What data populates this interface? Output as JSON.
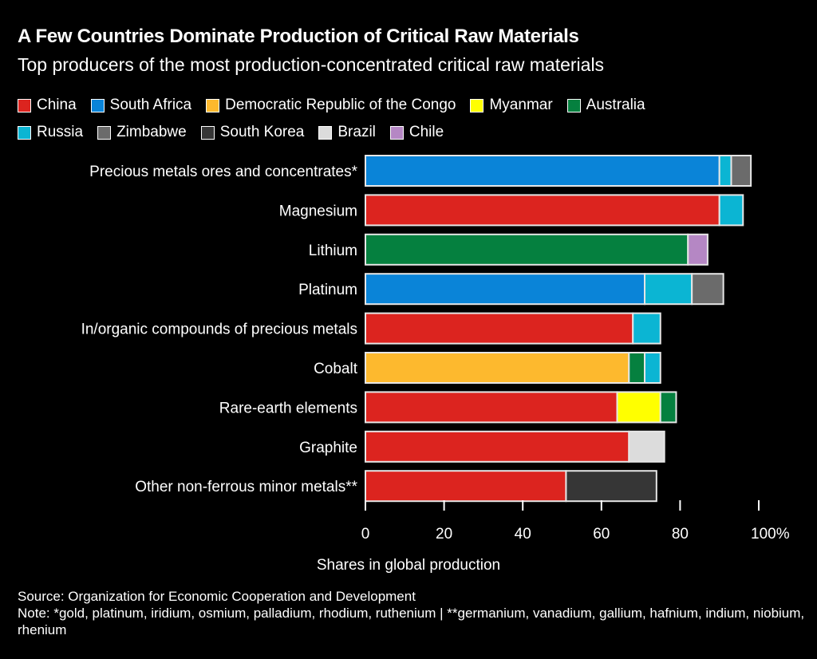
{
  "chart_data": {
    "type": "bar",
    "orientation": "horizontal",
    "stacked": true,
    "title": "A Few Countries Dominate Production of Critical Raw Materials",
    "subtitle": "Top producers of the most production-concentrated critical raw materials",
    "xlabel": "Shares in global production",
    "xlim": [
      0,
      100
    ],
    "xticks": [
      "0",
      "20",
      "40",
      "60",
      "80",
      "100%"
    ],
    "legend_position": "top",
    "legend": [
      {
        "name": "China",
        "color": "#dc241f"
      },
      {
        "name": "South Africa",
        "color": "#0a84d8"
      },
      {
        "name": "Democratic Republic of the Congo",
        "color": "#fdb92e"
      },
      {
        "name": "Myanmar",
        "color": "#ffff00"
      },
      {
        "name": "Australia",
        "color": "#05803f"
      },
      {
        "name": "Russia",
        "color": "#0bb5d3"
      },
      {
        "name": "Zimbabwe",
        "color": "#6b6b6b"
      },
      {
        "name": "South Korea",
        "color": "#363636"
      },
      {
        "name": "Brazil",
        "color": "#dcdcdc"
      },
      {
        "name": "Chile",
        "color": "#b587c4"
      }
    ],
    "categories": [
      "Precious metals ores and concentrates*",
      "Magnesium",
      "Lithium",
      "Platinum",
      "In/organic compounds of precious metals",
      "Cobalt",
      "Rare-earth elements",
      "Graphite",
      "Other non-ferrous minor metals**"
    ],
    "bars": [
      [
        {
          "country": "South Africa",
          "value": 90
        },
        {
          "country": "Russia",
          "value": 3
        },
        {
          "country": "Zimbabwe",
          "value": 5
        }
      ],
      [
        {
          "country": "China",
          "value": 90
        },
        {
          "country": "Russia",
          "value": 6
        }
      ],
      [
        {
          "country": "Australia",
          "value": 82
        },
        {
          "country": "Chile",
          "value": 5
        }
      ],
      [
        {
          "country": "South Africa",
          "value": 71
        },
        {
          "country": "Russia",
          "value": 12
        },
        {
          "country": "Zimbabwe",
          "value": 8
        }
      ],
      [
        {
          "country": "China",
          "value": 68
        },
        {
          "country": "Russia",
          "value": 7
        }
      ],
      [
        {
          "country": "Democratic Republic of the Congo",
          "value": 67
        },
        {
          "country": "Australia",
          "value": 4
        },
        {
          "country": "Russia",
          "value": 4
        }
      ],
      [
        {
          "country": "China",
          "value": 64
        },
        {
          "country": "Myanmar",
          "value": 11
        },
        {
          "country": "Australia",
          "value": 4
        }
      ],
      [
        {
          "country": "China",
          "value": 67
        },
        {
          "country": "Brazil",
          "value": 9
        }
      ],
      [
        {
          "country": "China",
          "value": 51
        },
        {
          "country": "South Korea",
          "value": 23
        }
      ]
    ],
    "source": "Source: Organization for Economic Cooperation and Development",
    "note": "Note: *gold, platinum, iridium, osmium, palladium, rhodium, ruthenium | **germanium, vanadium, gallium, hafnium, indium, niobium, rhenium"
  }
}
